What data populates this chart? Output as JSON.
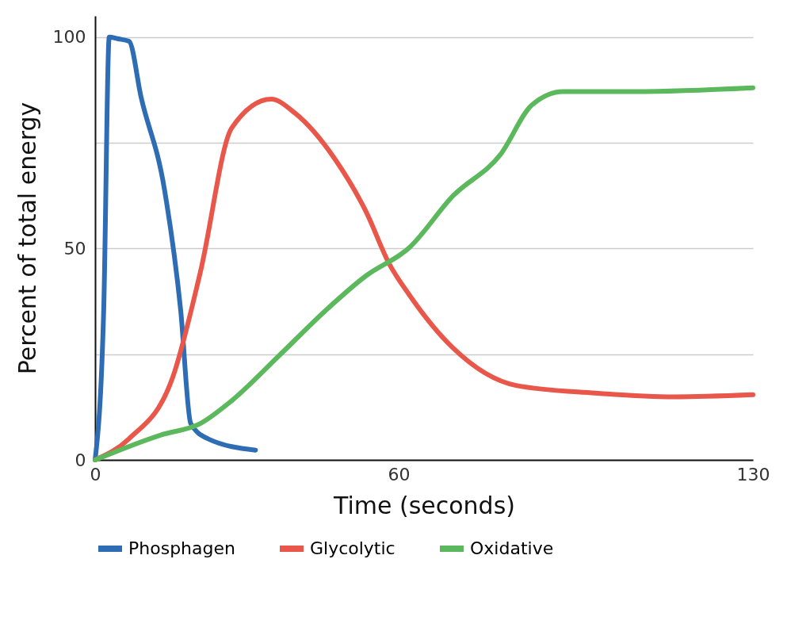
{
  "chart_data": {
    "type": "line",
    "xlabel": "Time (seconds)",
    "ylabel": "Percent of total energy",
    "xlim": [
      0,
      130
    ],
    "xticks": [
      0,
      60,
      130
    ],
    "ylim": [
      0,
      105
    ],
    "yticks": [
      0,
      {
        "value": 25,
        "label": null
      },
      50,
      {
        "value": 75,
        "label": null
      },
      100
    ],
    "grid": "y",
    "legend": "bottom",
    "marker": "none",
    "line_style": "solid",
    "series": [
      {
        "name": "Phosphagen",
        "color": "#2e6db4",
        "x": [
          0,
          1.7,
          2.8,
          4.4,
          6.7,
          9.1,
          13.7,
          16.9,
          18.9,
          22.3,
          31.7
        ],
        "values": [
          0,
          35.5,
          100,
          99.6,
          99,
          85.7,
          64,
          35.5,
          8.6,
          5,
          2.3
        ]
      },
      {
        "name": "Glycolytic",
        "color": "#e8574a",
        "x": [
          0,
          6.7,
          15.3,
          20.8,
          27,
          34.8,
          39.5,
          47.3,
          53.5,
          58.2,
          62.1,
          70.7,
          83.2,
          98.8,
          114.4,
          130
        ],
        "values": [
          0,
          5,
          19.4,
          44.4,
          78.5,
          85.3,
          82,
          71.3,
          58.8,
          46.2,
          39,
          26.5,
          17.6,
          15.8,
          14.9,
          15.4
        ]
      },
      {
        "name": "Oxidative",
        "color": "#5cb85c",
        "x": [
          0,
          13,
          20.8,
          27,
          36.4,
          45.7,
          53.5,
          62.1,
          70.7,
          80.1,
          86.3,
          92.5,
          106.6,
          130
        ],
        "values": [
          0,
          5.9,
          8.6,
          14,
          24.7,
          35.5,
          43.5,
          50.2,
          62.4,
          72.2,
          83.9,
          87.1,
          87.1,
          88
        ]
      }
    ]
  }
}
